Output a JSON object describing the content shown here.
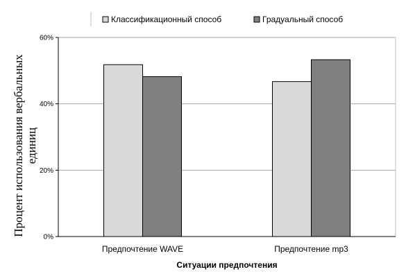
{
  "chart_data": {
    "type": "bar",
    "categories": [
      "Предпочтение WAVE",
      "Предпочтение mp3"
    ],
    "series": [
      {
        "name": "Классификационный способ",
        "values": [
          51.8,
          46.7
        ],
        "color": "#d9d9d9"
      },
      {
        "name": "Градуальный способ",
        "values": [
          48.2,
          53.3
        ],
        "color": "#808080"
      }
    ],
    "xlabel": "Ситуации предпочтения",
    "ylabel_lines": [
      "Процент использования вербальных",
      "единиц"
    ],
    "ylim": [
      0,
      60
    ],
    "yticks": [
      "0%",
      "20%",
      "40%",
      "60%"
    ],
    "ytick_values": [
      0,
      20,
      40,
      60
    ],
    "grid": true,
    "legend_position": "top"
  }
}
